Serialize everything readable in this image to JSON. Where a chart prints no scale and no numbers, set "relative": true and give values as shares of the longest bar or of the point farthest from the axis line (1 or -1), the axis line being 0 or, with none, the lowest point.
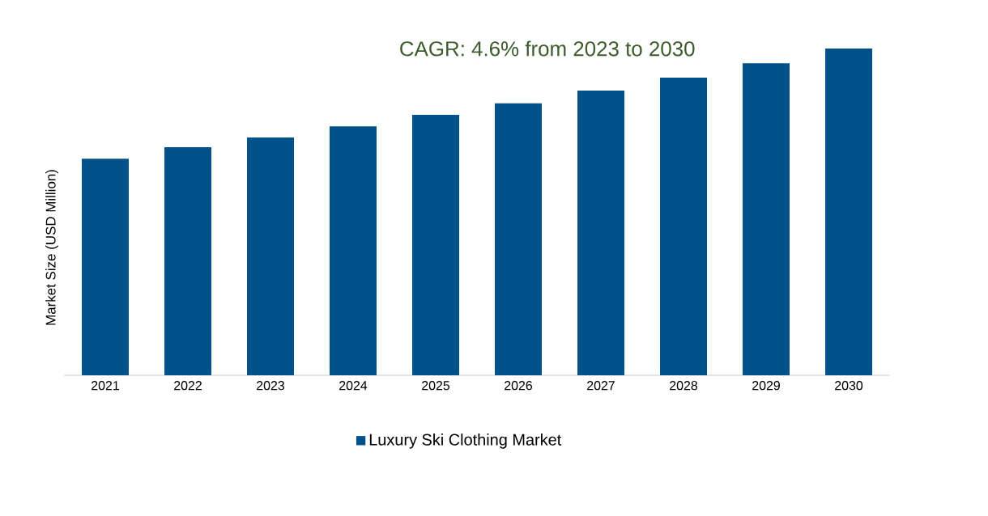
{
  "chart_data": {
    "type": "bar",
    "title": "CAGR: 4.6% from 2023 to 2030",
    "ylabel": "Market Size (USD Million)",
    "categories": [
      "2021",
      "2022",
      "2023",
      "2024",
      "2025",
      "2026",
      "2027",
      "2028",
      "2029",
      "2030"
    ],
    "relative": true,
    "series": [
      {
        "name": "Luxury Ski Clothing Market",
        "color": "#00508a",
        "values": [
          0.663,
          0.698,
          0.728,
          0.762,
          0.797,
          0.832,
          0.871,
          0.911,
          0.955,
          1
        ]
      }
    ],
    "legend": "bottom"
  }
}
